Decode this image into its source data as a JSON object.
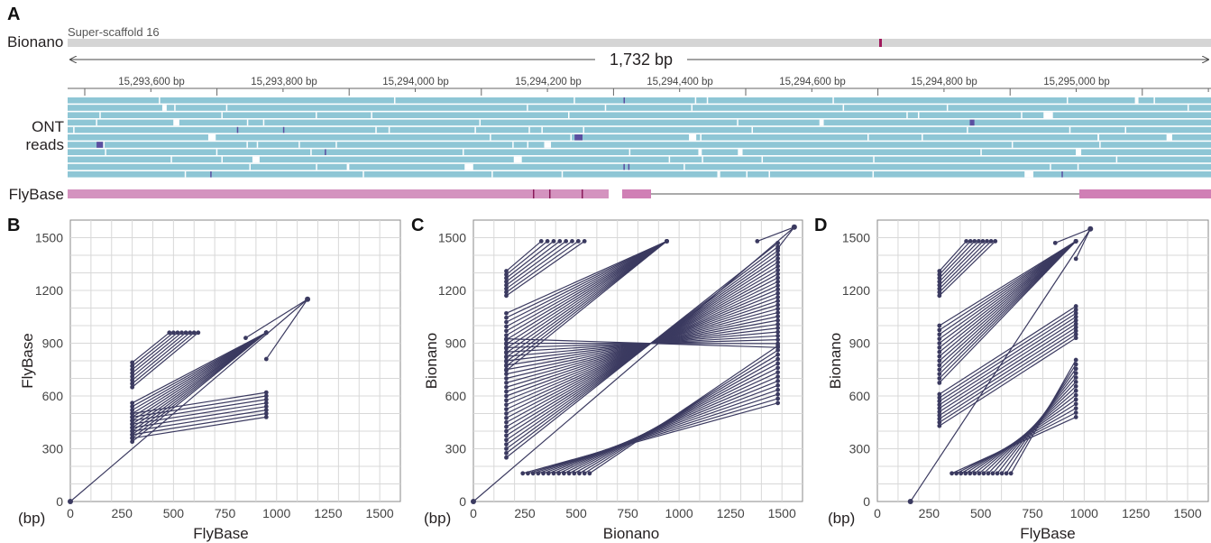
{
  "panel_a": {
    "letter": "A",
    "bionano_label": "Bionano",
    "scaffold_label": "Super-scaffold 16",
    "span_label": "1,732 bp",
    "ruler_ticks": [
      "15,293,600 bp",
      "15,293,800 bp",
      "15,294,000 bp",
      "15,294,200 bp",
      "15,294,400 bp",
      "15,294,600 bp",
      "15,294,800 bp",
      "15,295,000 bp"
    ],
    "ont_label_1": "ONT",
    "ont_label_2": "reads",
    "flybase_label": "FlyBase",
    "colors": {
      "read": "#8ec6d5",
      "gene": "#d493bf",
      "bionano_bar": "#d5d5d5",
      "mark": "#a01a5c"
    }
  },
  "chart_data": [
    {
      "type": "scatter",
      "panel": "B",
      "title": "",
      "xlabel": "FlyBase",
      "ylabel": "FlyBase",
      "unit_label": "(bp)",
      "xlim": [
        0,
        1600
      ],
      "ylim": [
        0,
        1600
      ],
      "xticks": [
        0,
        250,
        500,
        750,
        1000,
        1250,
        1500
      ],
      "yticks": [
        0,
        300,
        600,
        900,
        1200,
        1500
      ],
      "grid": true,
      "points": [
        [
          0,
          0
        ],
        [
          1150,
          1150
        ]
      ],
      "segment_groups": [
        {
          "from": [
            300,
            790
          ],
          "to": [
            480,
            960
          ],
          "steps": 8,
          "dx": [
            0,
            20
          ],
          "dy": [
            -20,
            0
          ]
        },
        {
          "from": [
            300,
            560
          ],
          "to": [
            950,
            960
          ],
          "steps": 12,
          "dx": [
            0,
            0
          ],
          "dy": [
            -20,
            0
          ]
        },
        {
          "from": [
            300,
            360
          ],
          "to": [
            950,
            480
          ],
          "steps": 8,
          "dx": [
            0,
            0
          ],
          "dy": [
            20,
            20
          ]
        }
      ],
      "extra_segments": [
        [
          [
            0,
            0
          ],
          [
            1150,
            1150
          ]
        ],
        [
          [
            850,
            930
          ],
          [
            1150,
            1150
          ]
        ],
        [
          [
            950,
            810
          ],
          [
            1150,
            1150
          ]
        ]
      ]
    },
    {
      "type": "scatter",
      "panel": "C",
      "title": "",
      "xlabel": "Bionano",
      "ylabel": "Bionano",
      "unit_label": "(bp)",
      "xlim": [
        0,
        1600
      ],
      "ylim": [
        0,
        1600
      ],
      "xticks": [
        0,
        250,
        500,
        750,
        1000,
        1250,
        1500
      ],
      "yticks": [
        0,
        300,
        600,
        900,
        1200,
        1500
      ],
      "grid": true,
      "points": [
        [
          0,
          0
        ],
        [
          1560,
          1560
        ]
      ],
      "segment_groups": [
        {
          "from": [
            160,
            1310
          ],
          "to": [
            330,
            1480
          ],
          "steps": 8,
          "dx": [
            0,
            30
          ],
          "dy": [
            -20,
            0
          ]
        },
        {
          "from": [
            160,
            1070
          ],
          "to": [
            940,
            1480
          ],
          "steps": 14,
          "dx": [
            0,
            0
          ],
          "dy": [
            -25,
            0
          ]
        },
        {
          "from": [
            160,
            250
          ],
          "to": [
            1480,
            1470
          ],
          "steps": 28,
          "dx": [
            0,
            0
          ],
          "dy": [
            25,
            -22
          ]
        },
        {
          "from": [
            240,
            160
          ],
          "to": [
            1480,
            560
          ],
          "steps": 14,
          "dx": [
            25,
            0
          ],
          "dy": [
            0,
            25
          ]
        }
      ],
      "extra_segments": [
        [
          [
            0,
            0
          ],
          [
            1560,
            1560
          ]
        ],
        [
          [
            1380,
            1480
          ],
          [
            1560,
            1560
          ]
        ],
        [
          [
            1480,
            1440
          ],
          [
            1560,
            1560
          ]
        ]
      ]
    },
    {
      "type": "scatter",
      "panel": "D",
      "title": "",
      "xlabel": "FlyBase",
      "ylabel": "Bionano",
      "unit_label": "(bp)",
      "xlim": [
        0,
        1600
      ],
      "ylim": [
        0,
        1600
      ],
      "xticks": [
        0,
        250,
        500,
        750,
        1000,
        1250,
        1500
      ],
      "yticks": [
        0,
        300,
        600,
        900,
        1200,
        1500
      ],
      "grid": true,
      "points": [
        [
          160,
          0
        ],
        [
          1030,
          1550
        ]
      ],
      "segment_groups": [
        {
          "from": [
            300,
            1310
          ],
          "to": [
            430,
            1480
          ],
          "steps": 8,
          "dx": [
            0,
            20
          ],
          "dy": [
            -20,
            0
          ]
        },
        {
          "from": [
            300,
            1000
          ],
          "to": [
            960,
            1480
          ],
          "steps": 14,
          "dx": [
            0,
            0
          ],
          "dy": [
            -25,
            0
          ]
        },
        {
          "from": [
            300,
            430
          ],
          "to": [
            960,
            930
          ],
          "steps": 10,
          "dx": [
            0,
            0
          ],
          "dy": [
            20,
            20
          ]
        },
        {
          "from": [
            360,
            160
          ],
          "to": [
            960,
            480
          ],
          "steps": 14,
          "dx": [
            22,
            0
          ],
          "dy": [
            0,
            25
          ]
        }
      ],
      "extra_segments": [
        [
          [
            160,
            0
          ],
          [
            1030,
            1550
          ]
        ],
        [
          [
            860,
            1470
          ],
          [
            1030,
            1550
          ]
        ],
        [
          [
            960,
            1380
          ],
          [
            1030,
            1550
          ]
        ]
      ]
    }
  ]
}
